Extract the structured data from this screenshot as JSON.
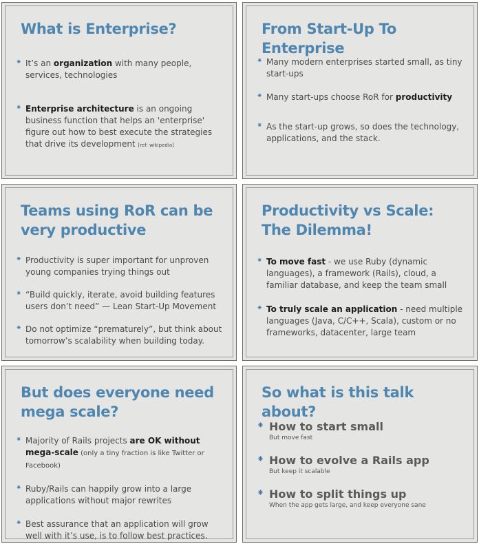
{
  "slides": [
    {
      "title": "What is Enterprise?",
      "bullets": [
        {
          "t1": "It’s an ",
          "b1": "organization",
          "t2": " with many people, services, technologies"
        },
        {
          "b1": "Enterprise architecture",
          "t1": " is an ongoing business function that helps an 'enterprise' figure out how to best execute the strategies that drive its development ",
          "ref": "[ref: wikipedia]"
        }
      ]
    },
    {
      "title": "From Start-Up To Enterprise",
      "bullets": [
        {
          "t1": "Many modern enterprises started small, as tiny start-ups"
        },
        {
          "t1": "Many start-ups choose RoR for ",
          "b1": "productivity"
        },
        {
          "t1": "As the start-up grows, so does the technology, applications, and the stack."
        }
      ]
    },
    {
      "title": "Teams using RoR can be very productive",
      "bullets": [
        {
          "t1": "Productivity is super important for unproven young companies trying things out"
        },
        {
          "t1": "“Build quickly, iterate, avoid building features users don’t need” — Lean Start-Up Movement"
        },
        {
          "t1": "Do not optimize “prematurely”, but think about tomorrow’s scalability when building today."
        }
      ]
    },
    {
      "title_line1": "Productivity vs Scale:",
      "title_line2": "The Dilemma!",
      "bullets": [
        {
          "b1": "To move fast",
          "t1": " - we use Ruby (dynamic languages), a framework (Rails), cloud, a familiar database, and keep the team small"
        },
        {
          "b1": "To truly scale an application",
          "t1": " - need multiple languages (Java, C/C++, Scala), custom or no frameworks, datacenter, large team"
        }
      ]
    },
    {
      "title": "But does everyone need mega scale?",
      "bullets": [
        {
          "t1": "Majority of Rails projects ",
          "b1": "are OK without mega-scale",
          "t2": " (only a tiny fraction is like Twitter or Facebook)"
        },
        {
          "t1": "Ruby/Rails can happily grow into a large applications without major rewrites"
        },
        {
          "t1": "Best assurance that an application will grow well with it’s use, is to follow best practices."
        }
      ]
    },
    {
      "title": "So what is this talk about?",
      "bullets": [
        {
          "head": "How to start small",
          "sub": "But move fast"
        },
        {
          "head": "How to evolve a Rails app",
          "sub": "But keep it scalable"
        },
        {
          "head": "How to split things up",
          "sub": "When the app gets large, and keep everyone sane"
        }
      ]
    }
  ],
  "icons": {
    "bullet": "asterisk-bullet-icon",
    "glyph": "⁕"
  },
  "colors": {
    "title": "#4f86b0",
    "slide_bg": "#e5e5e3",
    "text": "#4a4a4a",
    "bold": "#1d1d1d",
    "bullet": "#3f74a0"
  }
}
